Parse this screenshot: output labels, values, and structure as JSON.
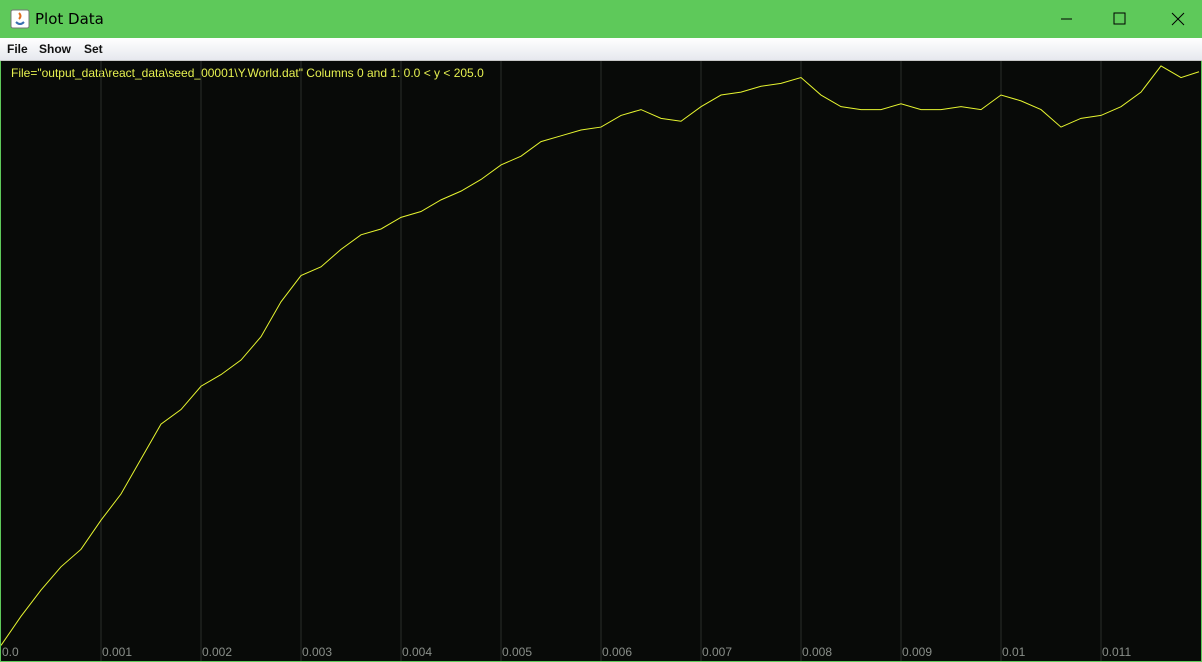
{
  "window": {
    "title": "Plot Data",
    "menu": [
      "File",
      "Show",
      "Set"
    ]
  },
  "chart_data": {
    "type": "line",
    "title": "File=\"output_data\\react_data\\seed_00001\\Y.World.dat\" Columns 0 and 1: 0.0 < y < 205.0",
    "x": [
      0,
      0.0002,
      0.0004,
      0.0006,
      0.0008,
      0.001,
      0.0012,
      0.0014,
      0.0016,
      0.0018,
      0.002,
      0.0022,
      0.0024,
      0.0026,
      0.0028,
      0.003,
      0.0032,
      0.0034,
      0.0036,
      0.0038,
      0.004,
      0.0042,
      0.0044,
      0.0046,
      0.0048,
      0.005,
      0.0052,
      0.0054,
      0.0056,
      0.0058,
      0.006,
      0.0062,
      0.0064,
      0.0066,
      0.0068,
      0.007,
      0.0072,
      0.0074,
      0.0076,
      0.0078,
      0.008,
      0.0082,
      0.0084,
      0.0086,
      0.0088,
      0.009,
      0.0092,
      0.0094,
      0.0096,
      0.0098,
      0.01,
      0.0102,
      0.0104,
      0.0106,
      0.0108,
      0.011,
      0.0112,
      0.0114,
      0.0116,
      0.0118,
      0.01198
    ],
    "values": [
      5,
      15,
      24,
      32,
      38,
      48,
      57,
      69,
      81,
      86,
      94,
      98,
      103,
      111,
      123,
      132,
      135,
      141,
      146,
      148,
      152,
      154,
      158,
      161,
      165,
      170,
      173,
      178,
      180,
      182,
      183,
      187,
      189,
      186,
      185,
      190,
      194,
      195,
      197,
      198,
      200,
      194,
      190,
      189,
      189,
      191,
      189,
      189,
      190,
      189,
      194,
      192,
      189,
      183,
      186,
      187,
      190,
      195,
      204,
      200,
      202
    ],
    "color": "#e6f530",
    "xlim": [
      0,
      0.012
    ],
    "ylim": [
      0,
      205
    ],
    "xticks": [
      {
        "value": 0,
        "label": "0.0"
      },
      0.001,
      0.002,
      0.003,
      0.004,
      0.005,
      0.006,
      0.007,
      0.008,
      0.009,
      0.01,
      0.011
    ],
    "grid": true
  }
}
